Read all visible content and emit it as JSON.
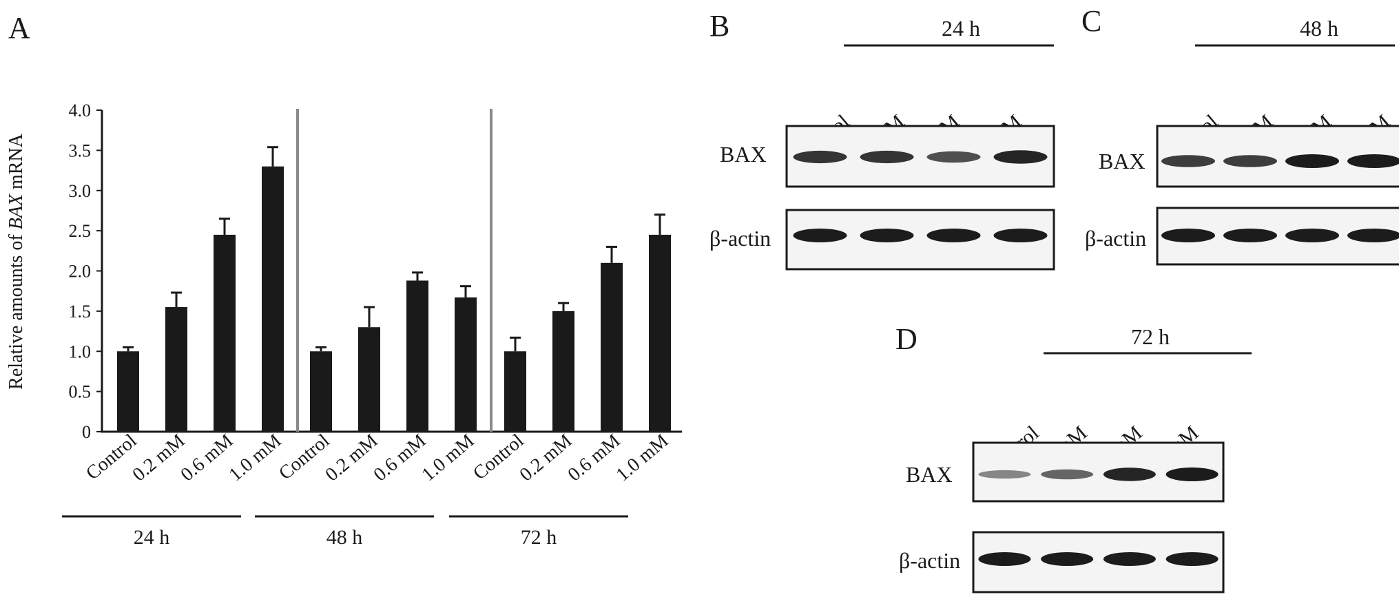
{
  "panels": {
    "A": {
      "letter": "A"
    },
    "B": {
      "letter": "B",
      "time": "24 h"
    },
    "C": {
      "letter": "C",
      "time": "48 h"
    },
    "D": {
      "letter": "D",
      "time": "72 h"
    }
  },
  "lane_labels": [
    "Control",
    "0.2 mM",
    "0.6 mM",
    "1.0 mM"
  ],
  "blot_rows": {
    "bax": "BAX",
    "actin": "β-actin"
  },
  "band_intensity": {
    "B": {
      "bax": [
        0.85,
        0.85,
        0.7,
        0.95
      ],
      "actin": [
        1.0,
        1.0,
        1.0,
        1.0
      ]
    },
    "C": {
      "bax": [
        0.8,
        0.8,
        1.0,
        1.0
      ],
      "actin": [
        1.0,
        1.0,
        1.0,
        1.0
      ]
    },
    "D": {
      "bax": [
        0.35,
        0.55,
        0.95,
        1.0
      ],
      "actin": [
        1.0,
        1.0,
        1.0,
        1.0
      ]
    }
  },
  "chart_data": {
    "type": "bar",
    "ylabel_prefix": "Relative amounts of ",
    "ylabel_gene": "BAX",
    "ylabel_suffix": " mRNA",
    "ylim": [
      0,
      4.0
    ],
    "yticks": [
      "0",
      "0.5",
      "1.0",
      "1.5",
      "2.0",
      "2.5",
      "3.0",
      "3.5",
      "4.0"
    ],
    "categories": [
      "Control",
      "0.2 mM",
      "0.6 mM",
      "1.0 mM"
    ],
    "groups": [
      {
        "label": "24 h",
        "values": [
          1.0,
          1.55,
          2.45,
          3.3
        ],
        "errors": [
          0.05,
          0.18,
          0.2,
          0.24
        ]
      },
      {
        "label": "48 h",
        "values": [
          1.0,
          1.3,
          1.88,
          1.67
        ],
        "errors": [
          0.05,
          0.25,
          0.1,
          0.14
        ]
      },
      {
        "label": "72 h",
        "values": [
          1.0,
          1.5,
          2.1,
          2.45
        ],
        "errors": [
          0.17,
          0.1,
          0.2,
          0.25
        ]
      }
    ],
    "grid": false,
    "legend": "none"
  }
}
